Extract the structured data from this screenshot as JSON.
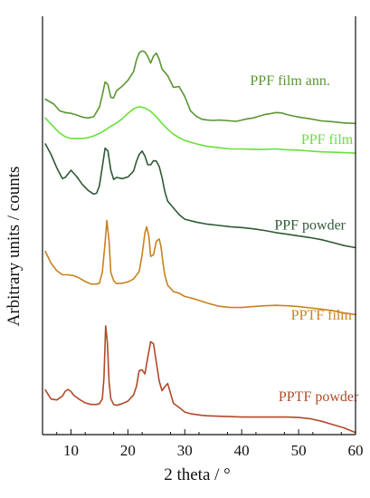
{
  "chart_data": {
    "type": "line",
    "xlabel": "2 theta / °",
    "ylabel": "Arbitrary units / counts",
    "xlim": [
      5,
      60
    ],
    "ylim": [
      0,
      10
    ],
    "xticks": [
      10,
      20,
      30,
      40,
      50,
      60
    ],
    "yticks_shown": false,
    "grid": false,
    "legend": "inline labels beside each curve",
    "series": [
      {
        "name": "PPF  film ann.",
        "color": "#5a9632",
        "x": [
          5.5,
          7,
          8,
          9,
          10,
          11,
          12,
          13,
          14,
          15,
          15.5,
          16,
          16.5,
          17,
          17.5,
          18,
          19,
          20,
          21,
          21.5,
          22,
          22.5,
          23,
          23.5,
          24,
          24.5,
          25,
          25.5,
          26,
          27,
          28,
          29,
          30,
          31,
          32,
          33,
          34,
          35,
          36,
          37,
          38,
          39,
          40,
          41,
          42,
          43,
          44,
          45,
          46,
          47,
          48,
          49,
          50,
          52,
          54,
          56,
          58,
          60
        ],
        "y": [
          8.02,
          7.9,
          7.74,
          7.7,
          7.68,
          7.64,
          7.59,
          7.57,
          7.6,
          7.83,
          8.12,
          8.43,
          8.37,
          8.06,
          8.05,
          8.22,
          8.33,
          8.47,
          8.68,
          8.95,
          9.13,
          9.17,
          9.15,
          9.04,
          8.88,
          9.05,
          9.12,
          8.97,
          8.74,
          8.58,
          8.3,
          8.32,
          8.08,
          7.74,
          7.61,
          7.54,
          7.52,
          7.51,
          7.52,
          7.51,
          7.5,
          7.49,
          7.52,
          7.55,
          7.57,
          7.61,
          7.65,
          7.67,
          7.7,
          7.69,
          7.65,
          7.62,
          7.59,
          7.55,
          7.5,
          7.48,
          7.45,
          7.44
        ]
      },
      {
        "name": "PPF film",
        "color": "#69e03c",
        "x": [
          5.5,
          7,
          8,
          9,
          10,
          11,
          12,
          13,
          14,
          15,
          16,
          17,
          18,
          19,
          20,
          21,
          22,
          23,
          24,
          25,
          26,
          27,
          28,
          29,
          30,
          32,
          34,
          36,
          38,
          40,
          42,
          44,
          46,
          48,
          50,
          52,
          54,
          56,
          58,
          60
        ],
        "y": [
          7.57,
          7.35,
          7.21,
          7.12,
          7.08,
          7.08,
          7.08,
          7.1,
          7.14,
          7.2,
          7.28,
          7.37,
          7.45,
          7.55,
          7.68,
          7.79,
          7.84,
          7.81,
          7.73,
          7.6,
          7.44,
          7.3,
          7.18,
          7.1,
          7.03,
          6.95,
          6.89,
          6.86,
          6.83,
          6.83,
          6.82,
          6.82,
          6.83,
          6.81,
          6.8,
          6.78,
          6.76,
          6.75,
          6.74,
          6.73
        ]
      },
      {
        "name": "PPF powder",
        "color": "#2f5a36",
        "x": [
          5.5,
          6.5,
          7.5,
          8.5,
          9,
          10,
          11,
          12,
          13,
          14,
          14.5,
          15,
          15.5,
          16,
          16.5,
          17,
          17.5,
          18,
          19,
          20,
          21,
          21.5,
          22,
          22.5,
          23,
          23.5,
          24,
          24.5,
          25,
          25.5,
          26,
          26.5,
          27,
          28,
          29,
          30,
          32,
          34,
          36,
          38,
          40,
          42,
          44,
          46,
          48,
          50,
          52,
          54,
          56,
          58,
          60
        ],
        "y": [
          6.95,
          6.7,
          6.38,
          6.12,
          6.15,
          6.32,
          6.17,
          5.98,
          5.84,
          5.75,
          5.77,
          5.95,
          6.4,
          6.85,
          6.78,
          6.32,
          6.1,
          6.15,
          6.12,
          6.16,
          6.3,
          6.53,
          6.7,
          6.78,
          6.66,
          6.45,
          6.45,
          6.55,
          6.54,
          6.41,
          6.15,
          5.8,
          5.58,
          5.42,
          5.26,
          5.15,
          5.08,
          5.03,
          5,
          4.97,
          4.95,
          4.92,
          4.88,
          4.83,
          4.79,
          4.75,
          4.71,
          4.66,
          4.59,
          4.52,
          4.47
        ]
      },
      {
        "name": "PPTF film",
        "color": "#c8821e",
        "x": [
          5.5,
          6.5,
          7.5,
          8.5,
          9.5,
          10.5,
          11.5,
          12.5,
          13.5,
          14.5,
          15,
          15.5,
          16,
          16.3,
          16.7,
          17,
          17.5,
          18,
          19,
          20,
          21,
          22,
          22.5,
          23,
          23.3,
          23.7,
          24,
          24.5,
          25,
          25.5,
          25.8,
          26.2,
          26.5,
          27,
          28,
          29,
          30,
          31,
          32,
          34,
          36,
          38,
          40,
          42,
          44,
          46,
          48,
          50,
          52,
          54,
          56,
          58,
          60
        ],
        "y": [
          4.38,
          4.1,
          3.92,
          3.82,
          3.82,
          3.8,
          3.74,
          3.66,
          3.6,
          3.6,
          3.62,
          3.88,
          4.6,
          5.12,
          4.62,
          3.88,
          3.68,
          3.61,
          3.62,
          3.65,
          3.72,
          3.9,
          4.3,
          4.82,
          4.97,
          4.74,
          4.26,
          4.3,
          4.62,
          4.68,
          4.5,
          4.07,
          3.8,
          3.57,
          3.42,
          3.38,
          3.3,
          3.27,
          3.23,
          3.14,
          3.07,
          3.04,
          3.04,
          3.06,
          3.08,
          3.09,
          3.08,
          3.06,
          3.03,
          3,
          2.96,
          2.91,
          2.87
        ]
      },
      {
        "name": "PPTF powder",
        "color": "#b04a2a",
        "x": [
          5.5,
          6.5,
          7.5,
          8.5,
          9,
          9.5,
          10,
          10.5,
          11.5,
          12.5,
          13.5,
          14.5,
          15,
          15.5,
          15.8,
          16.1,
          16.4,
          16.7,
          17,
          17.5,
          18,
          19,
          20,
          21,
          21.5,
          22,
          22.5,
          23,
          23.5,
          24,
          24.5,
          25,
          25.5,
          26,
          26.5,
          27,
          27.5,
          28,
          29,
          30,
          31,
          32,
          33,
          34,
          36,
          38,
          40,
          42,
          44,
          46,
          48,
          50,
          52,
          54,
          56,
          58,
          60
        ],
        "y": [
          1.07,
          0.85,
          0.83,
          0.92,
          1.04,
          1.08,
          1.03,
          0.94,
          0.84,
          0.76,
          0.72,
          0.72,
          0.74,
          0.85,
          1.35,
          2.6,
          2.2,
          1.25,
          0.86,
          0.72,
          0.7,
          0.74,
          0.8,
          0.95,
          1.15,
          1.53,
          1.55,
          1.45,
          1.85,
          2.22,
          2.17,
          1.73,
          1.28,
          1.05,
          1.15,
          1.22,
          0.99,
          0.75,
          0.65,
          0.54,
          0.5,
          0.48,
          0.46,
          0.45,
          0.44,
          0.43,
          0.42,
          0.42,
          0.42,
          0.42,
          0.42,
          0.41,
          0.38,
          0.32,
          0.24,
          0.16,
          0.05
        ]
      }
    ]
  }
}
